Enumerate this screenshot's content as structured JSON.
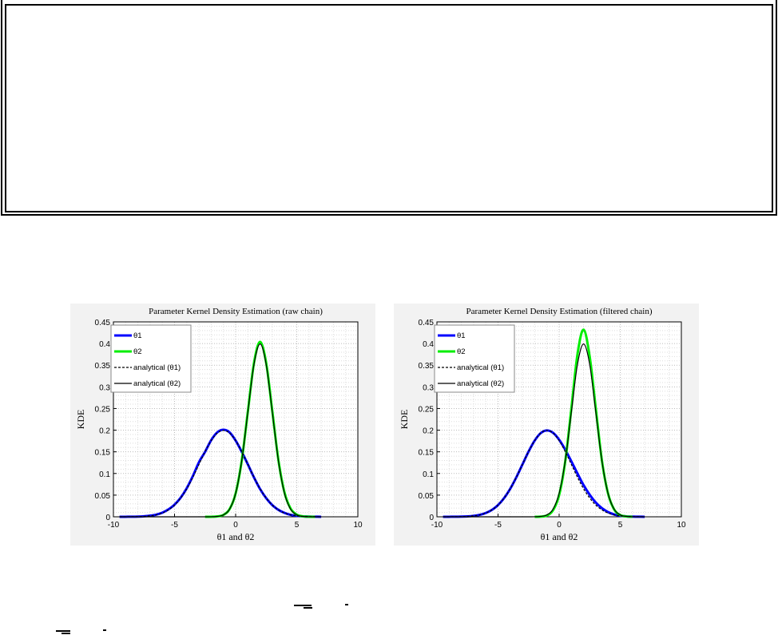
{
  "chart_data": [
    {
      "type": "line",
      "title": "Parameter Kernel Density Estimation (raw chain)",
      "xlabel": "θ1 and θ2",
      "ylabel": "KDE",
      "xlim": [
        -10,
        10
      ],
      "ylim": [
        0,
        0.45
      ],
      "xticks": [
        "-10",
        "-5",
        "0",
        "5",
        "10"
      ],
      "yticks": [
        "0",
        "0.05",
        "0.1",
        "0.15",
        "0.2",
        "0.25",
        "0.3",
        "0.35",
        "0.4",
        "0.45"
      ],
      "grid": true,
      "legend_position": "top-left",
      "x": [
        -9.5,
        -9,
        -8.5,
        -8,
        -7.5,
        -7,
        -6.5,
        -6,
        -5.5,
        -5,
        -4.5,
        -4,
        -3.5,
        -3,
        -2.5,
        -2,
        -1.5,
        -1,
        -0.5,
        0,
        0.5,
        1,
        1.5,
        2,
        2.5,
        3,
        3.5,
        4,
        4.5,
        5,
        5.5,
        6,
        6.5,
        7
      ],
      "series": [
        {
          "name": "θ1",
          "color": "#0000ff",
          "style": "thick",
          "values": [
            0,
            0.0001,
            0.0002,
            0.0005,
            0.0012,
            0.0025,
            0.005,
            0.0095,
            0.017,
            0.028,
            0.044,
            0.066,
            0.094,
            0.126,
            0.15,
            0.177,
            0.195,
            0.201,
            0.195,
            0.176,
            0.15,
            0.121,
            0.091,
            0.064,
            0.043,
            0.027,
            0.016,
            0.009,
            0.0045,
            0.0022,
            0.001,
            0.0004,
            0.0002,
            0.0001
          ]
        },
        {
          "name": "θ2",
          "color": "#00ee00",
          "style": "thick",
          "values": [
            null,
            null,
            null,
            null,
            null,
            null,
            null,
            null,
            null,
            null,
            null,
            null,
            null,
            null,
            0,
            0.0001,
            0.0009,
            0.0044,
            0.0175,
            0.054,
            0.13,
            0.243,
            0.355,
            0.404,
            0.355,
            0.244,
            0.131,
            0.056,
            0.019,
            0.005,
            0.001,
            0.0002,
            0,
            null
          ]
        },
        {
          "name": "analytical (θ1)",
          "color": "#000000",
          "style": "dashed",
          "values": [
            0,
            0.0001,
            0.0002,
            0.0004,
            0.001,
            0.0022,
            0.0045,
            0.0088,
            0.0159,
            0.027,
            0.0433,
            0.0648,
            0.0913,
            0.121,
            0.1506,
            0.176,
            0.1934,
            0.1995,
            0.1934,
            0.176,
            0.1506,
            0.121,
            0.0913,
            0.0648,
            0.0433,
            0.027,
            0.0159,
            0.0088,
            0.0045,
            0.0022,
            0.001,
            0.0004,
            0.0002,
            0.0001
          ]
        },
        {
          "name": "analytical (θ2)",
          "color": "#000000",
          "style": "solid",
          "values": [
            0,
            0,
            0,
            0,
            0,
            0,
            0,
            0,
            0,
            0,
            0,
            0,
            0,
            0,
            0,
            0.0001,
            0.0009,
            0.0044,
            0.0175,
            0.054,
            0.1295,
            0.242,
            0.352,
            0.399,
            0.352,
            0.242,
            0.1295,
            0.054,
            0.0175,
            0.0044,
            0.0009,
            0.0001,
            0,
            0
          ]
        }
      ]
    },
    {
      "type": "line",
      "title": "Parameter Kernel Density Estimation (filtered chain)",
      "xlabel": "θ1 and θ2",
      "ylabel": "KDE",
      "xlim": [
        -10,
        10
      ],
      "ylim": [
        0,
        0.45
      ],
      "xticks": [
        "-10",
        "-5",
        "0",
        "5",
        "10"
      ],
      "yticks": [
        "0",
        "0.05",
        "0.1",
        "0.15",
        "0.2",
        "0.25",
        "0.3",
        "0.35",
        "0.4",
        "0.45"
      ],
      "grid": true,
      "legend_position": "top-left",
      "x": [
        -9.5,
        -9,
        -8.5,
        -8,
        -7.5,
        -7,
        -6.5,
        -6,
        -5.5,
        -5,
        -4.5,
        -4,
        -3.5,
        -3,
        -2.5,
        -2,
        -1.5,
        -1,
        -0.5,
        0,
        0.5,
        1,
        1.5,
        2,
        2.5,
        3,
        3.5,
        4,
        4.5,
        5,
        5.5,
        6,
        6.5,
        7
      ],
      "series": [
        {
          "name": "θ1",
          "color": "#0000ff",
          "style": "thick",
          "values": [
            0,
            0.0001,
            0.0002,
            0.0004,
            0.001,
            0.0022,
            0.0045,
            0.0088,
            0.0159,
            0.027,
            0.0433,
            0.0648,
            0.0913,
            0.121,
            0.1506,
            0.176,
            0.1934,
            0.1995,
            0.194,
            0.178,
            0.155,
            0.128,
            0.1,
            0.073,
            0.051,
            0.033,
            0.02,
            0.011,
            0.0055,
            0.0025,
            0.001,
            0.0004,
            0.0002,
            0.0001
          ]
        },
        {
          "name": "θ2",
          "color": "#00ee00",
          "style": "thick",
          "values": [
            null,
            null,
            null,
            null,
            null,
            null,
            null,
            null,
            null,
            null,
            null,
            null,
            null,
            null,
            null,
            0,
            0.0005,
            0.003,
            0.015,
            0.05,
            0.128,
            0.25,
            0.375,
            0.432,
            0.37,
            0.25,
            0.13,
            0.054,
            0.017,
            0.004,
            0.0008,
            0.0001,
            null,
            null
          ]
        },
        {
          "name": "analytical (θ1)",
          "color": "#000000",
          "style": "dashed",
          "values": [
            0,
            0.0001,
            0.0002,
            0.0004,
            0.001,
            0.0022,
            0.0045,
            0.0088,
            0.0159,
            0.027,
            0.0433,
            0.0648,
            0.0913,
            0.121,
            0.1506,
            0.176,
            0.1934,
            0.1995,
            0.1934,
            0.176,
            0.1506,
            0.121,
            0.0913,
            0.0648,
            0.0433,
            0.027,
            0.0159,
            0.0088,
            0.0045,
            0.0022,
            0.001,
            0.0004,
            0.0002,
            0.0001
          ]
        },
        {
          "name": "analytical (θ2)",
          "color": "#000000",
          "style": "solid",
          "values": [
            0,
            0,
            0,
            0,
            0,
            0,
            0,
            0,
            0,
            0,
            0,
            0,
            0,
            0,
            0,
            0.0001,
            0.0009,
            0.0044,
            0.0175,
            0.054,
            0.1295,
            0.242,
            0.352,
            0.399,
            0.352,
            0.242,
            0.1295,
            0.054,
            0.0175,
            0.0044,
            0.0009,
            0.0001,
            0,
            0
          ]
        }
      ]
    }
  ]
}
